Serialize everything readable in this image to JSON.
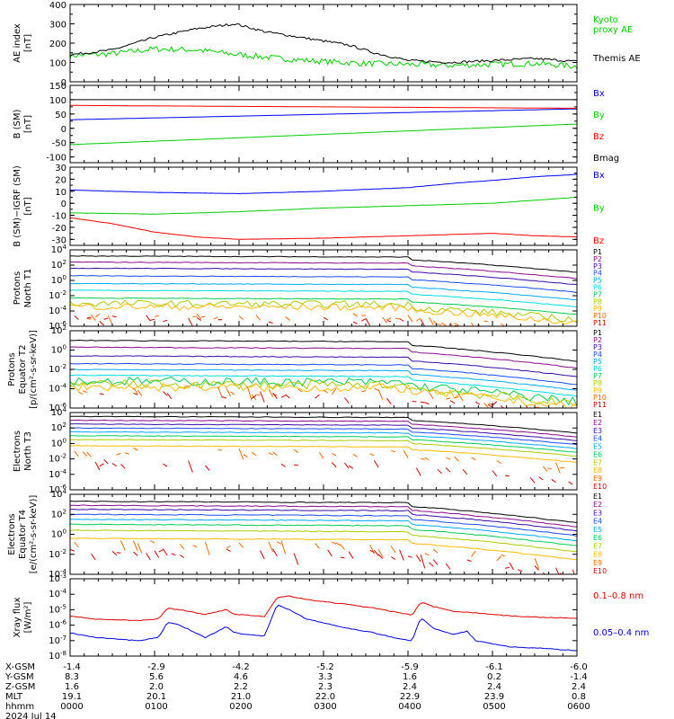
{
  "chart_data": [
    {
      "type": "line",
      "ylabel": "AE index\n[nT]",
      "ylim": [
        0,
        400
      ],
      "yticks": [
        0,
        100,
        200,
        300,
        400
      ],
      "series": [
        {
          "name": "Kyoto\nproxy AE",
          "color": "#00cc00",
          "kind": "ae_kyoto"
        },
        {
          "name": "Themis AE",
          "color": "#000000",
          "kind": "ae_themis"
        }
      ]
    },
    {
      "type": "line",
      "ylabel": "B (SM)\n[nT]",
      "ylim": [
        -120,
        150
      ],
      "yticks": [
        -100,
        -50,
        0,
        50,
        100,
        150
      ],
      "series": [
        {
          "name": "Bx",
          "color": "#0000ff",
          "pts": [
            [
              0,
              30
            ],
            [
              6,
              68
            ]
          ]
        },
        {
          "name": "By",
          "color": "#00cc00",
          "pts": [
            [
              0,
              -57
            ],
            [
              6,
              15
            ]
          ]
        },
        {
          "name": "Bz",
          "color": "#ff0000",
          "pts": [
            [
              0,
              80
            ],
            [
              6,
              70
            ]
          ]
        },
        {
          "name": "Bmag",
          "color": "#000000",
          "pts": [
            [
              0,
              100
            ],
            [
              6,
              100
            ]
          ]
        }
      ]
    },
    {
      "type": "line",
      "ylabel": "B (SM)−IGRF (SM)\n[nT]",
      "ylim": [
        -35,
        30
      ],
      "yticks": [
        -30,
        -20,
        -10,
        0,
        10,
        20,
        30
      ],
      "series": [
        {
          "name": "Bx",
          "color": "#0000ff",
          "pts": [
            [
              0,
              11
            ],
            [
              1,
              9
            ],
            [
              2,
              8
            ],
            [
              3,
              10
            ],
            [
              4,
              13
            ],
            [
              4.6,
              17
            ],
            [
              5,
              19
            ],
            [
              5.5,
              22
            ],
            [
              6,
              24
            ]
          ]
        },
        {
          "name": "By",
          "color": "#00cc00",
          "pts": [
            [
              0,
              -8
            ],
            [
              1,
              -9
            ],
            [
              2,
              -7
            ],
            [
              3,
              -4
            ],
            [
              4,
              -2
            ],
            [
              5,
              0
            ],
            [
              6,
              5
            ]
          ]
        },
        {
          "name": "Bz",
          "color": "#ff0000",
          "pts": [
            [
              0,
              -12
            ],
            [
              0.5,
              -17
            ],
            [
              1,
              -24
            ],
            [
              1.5,
              -28
            ],
            [
              2,
              -30
            ],
            [
              3,
              -29
            ],
            [
              4,
              -27
            ],
            [
              5,
              -25
            ],
            [
              5.5,
              -27
            ],
            [
              6,
              -28
            ]
          ]
        }
      ]
    },
    {
      "type": "line",
      "log": true,
      "ylabel": "Protons\nNorth T1",
      "ylim": [
        -6,
        4
      ],
      "yticks": [
        -6,
        -4,
        -2,
        0,
        2,
        4
      ],
      "series": [
        {
          "name": "P1",
          "color": "#000000",
          "lv": 3.2
        },
        {
          "name": "P2",
          "color": "#8b0a8b",
          "lv": 2.4
        },
        {
          "name": "P3",
          "color": "#3a0aa8",
          "lv": 1.6
        },
        {
          "name": "P4",
          "color": "#1a4aff",
          "lv": 0.6
        },
        {
          "name": "P5",
          "color": "#00aaff",
          "lv": -0.4
        },
        {
          "name": "P6",
          "color": "#00dddd",
          "lv": -1.3
        },
        {
          "name": "P7",
          "color": "#00cc55",
          "lv": -2.3
        },
        {
          "name": "P8",
          "color": "#aacc00",
          "lv": -3.0
        },
        {
          "name": "P9",
          "color": "#ffbb00",
          "lv": -3.4
        },
        {
          "name": "P10",
          "color": "#ff6600",
          "lv": -4.6
        },
        {
          "name": "P11",
          "color": "#cc0000",
          "lv": -4.9
        }
      ]
    },
    {
      "type": "line",
      "log": true,
      "ylabel": "Protons\nEquator T2\n[p/(cm²-s-sr-keV)]",
      "ylim": [
        -6,
        2
      ],
      "yticks": [
        -6,
        -4,
        -2,
        0,
        2
      ],
      "series": [
        {
          "name": "P1",
          "color": "#000000",
          "lv": 1.0
        },
        {
          "name": "P2",
          "color": "#8b0a8b",
          "lv": 0.3
        },
        {
          "name": "P3",
          "color": "#3a0aa8",
          "lv": -0.6
        },
        {
          "name": "P4",
          "color": "#1a4aff",
          "lv": -1.4
        },
        {
          "name": "P5",
          "color": "#00aaff",
          "lv": -2.0
        },
        {
          "name": "P6",
          "color": "#00dddd",
          "lv": -2.6
        },
        {
          "name": "P7",
          "color": "#00cc55",
          "lv": -3.2
        },
        {
          "name": "P8",
          "color": "#aacc00",
          "lv": -3.5
        },
        {
          "name": "P9",
          "color": "#ffbb00",
          "lv": -3.8
        },
        {
          "name": "P10",
          "color": "#ff6600",
          "lv": -4.1
        },
        {
          "name": "P11",
          "color": "#cc0000",
          "lv": -4.5
        }
      ]
    },
    {
      "type": "line",
      "log": true,
      "ylabel": "Electrons\nNorth T3",
      "ylim": [
        -6,
        4
      ],
      "yticks": [
        -6,
        -4,
        -2,
        0,
        2,
        4
      ],
      "series": [
        {
          "name": "E1",
          "color": "#000000",
          "lv": 3.5
        },
        {
          "name": "E2",
          "color": "#8b0a8b",
          "lv": 3.0
        },
        {
          "name": "E3",
          "color": "#3a0aa8",
          "lv": 2.5
        },
        {
          "name": "E4",
          "color": "#1a4aff",
          "lv": 2.0
        },
        {
          "name": "E5",
          "color": "#00aaff",
          "lv": 1.5
        },
        {
          "name": "E6",
          "color": "#00cc55",
          "lv": 1.0
        },
        {
          "name": "E7",
          "color": "#aacc00",
          "lv": 0.5
        },
        {
          "name": "E8",
          "color": "#ffbb00",
          "lv": -0.3
        },
        {
          "name": "E9",
          "color": "#ff6600",
          "lv": -1.0
        },
        {
          "name": "E10",
          "color": "#cc0000",
          "lv": -2.5
        }
      ]
    },
    {
      "type": "line",
      "log": true,
      "ylabel": "Electrons\nEquator T4\n[e/(cm²-s-sr-keV)]",
      "ylim": [
        -4,
        4
      ],
      "yticks": [
        -4,
        -2,
        0,
        2,
        4
      ],
      "series": [
        {
          "name": "E1",
          "color": "#000000",
          "lv": 3.3
        },
        {
          "name": "E2",
          "color": "#8b0a8b",
          "lv": 2.9
        },
        {
          "name": "E3",
          "color": "#3a0aa8",
          "lv": 2.5
        },
        {
          "name": "E4",
          "color": "#1a4aff",
          "lv": 2.0
        },
        {
          "name": "E5",
          "color": "#00aaff",
          "lv": 1.5
        },
        {
          "name": "E6",
          "color": "#00cc55",
          "lv": 1.0
        },
        {
          "name": "E7",
          "color": "#aacc00",
          "lv": 0.4
        },
        {
          "name": "E8",
          "color": "#ffbb00",
          "lv": -0.4
        },
        {
          "name": "E9",
          "color": "#ff6600",
          "lv": -1.0
        },
        {
          "name": "E10",
          "color": "#cc0000",
          "lv": -1.8
        }
      ]
    },
    {
      "type": "line",
      "log": true,
      "ylabel": "Xray flux\n[W/m²]",
      "ylim": [
        -8,
        -3
      ],
      "yticks": [
        -8,
        -7,
        -6,
        -5,
        -4,
        -3
      ],
      "series": [
        {
          "name": "0.1–0.8 nm",
          "color": "#dd0000",
          "pts": [
            [
              0,
              -5.4
            ],
            [
              0.3,
              -5.6
            ],
            [
              0.8,
              -5.7
            ],
            [
              1.05,
              -5.6
            ],
            [
              1.15,
              -4.9
            ],
            [
              1.3,
              -5.0
            ],
            [
              1.6,
              -5.3
            ],
            [
              1.85,
              -5.0
            ],
            [
              1.95,
              -5.3
            ],
            [
              2.3,
              -5.45
            ],
            [
              2.45,
              -4.2
            ],
            [
              2.6,
              -4.1
            ],
            [
              2.8,
              -4.35
            ],
            [
              3.2,
              -4.6
            ],
            [
              3.6,
              -4.9
            ],
            [
              3.9,
              -5.2
            ],
            [
              4.05,
              -5.35
            ],
            [
              4.15,
              -4.5
            ],
            [
              4.3,
              -4.8
            ],
            [
              4.55,
              -5.1
            ],
            [
              4.8,
              -5.2
            ],
            [
              5.2,
              -5.4
            ],
            [
              5.6,
              -5.5
            ],
            [
              6,
              -5.55
            ]
          ]
        },
        {
          "name": "0.05–0.4 nm",
          "color": "#0000dd",
          "pts": [
            [
              0,
              -6.5
            ],
            [
              0.3,
              -6.8
            ],
            [
              0.8,
              -7.0
            ],
            [
              1.05,
              -6.8
            ],
            [
              1.15,
              -5.8
            ],
            [
              1.3,
              -6.0
            ],
            [
              1.6,
              -6.8
            ],
            [
              1.85,
              -6.1
            ],
            [
              1.95,
              -6.5
            ],
            [
              2.3,
              -6.7
            ],
            [
              2.45,
              -4.7
            ],
            [
              2.6,
              -5.0
            ],
            [
              2.8,
              -5.6
            ],
            [
              3.2,
              -6.1
            ],
            [
              3.6,
              -6.5
            ],
            [
              3.9,
              -6.9
            ],
            [
              4.05,
              -7.0
            ],
            [
              4.15,
              -5.5
            ],
            [
              4.3,
              -6.2
            ],
            [
              4.55,
              -6.6
            ],
            [
              4.7,
              -6.4
            ],
            [
              4.8,
              -7.0
            ],
            [
              5.2,
              -7.4
            ],
            [
              5.6,
              -7.5
            ],
            [
              6,
              -7.65
            ]
          ]
        }
      ]
    }
  ],
  "orbit_table": {
    "rows": [
      {
        "label": "X-GSM",
        "values": [
          "-1.4",
          "-2.9",
          "-4.2",
          "-5.2",
          "-5.9",
          "-6.1",
          "-6.0"
        ]
      },
      {
        "label": "Y-GSM",
        "values": [
          "8.3",
          "5.6",
          "4.6",
          "3.3",
          "1.6",
          "0.2",
          "-1.4"
        ]
      },
      {
        "label": "Z-GSM",
        "values": [
          "1.6",
          "2.0",
          "2.2",
          "2.3",
          "2.4",
          "2.4",
          "2.4"
        ]
      },
      {
        "label": "MLT",
        "values": [
          "19.1",
          "20.1",
          "21.0",
          "22.0",
          "22.9",
          "23.9",
          "0.8"
        ]
      },
      {
        "label": "hhmm",
        "values": [
          "0000",
          "0100",
          "0200",
          "0300",
          "0400",
          "0500",
          "0600"
        ]
      }
    ],
    "date": "2024 Jul 14"
  }
}
